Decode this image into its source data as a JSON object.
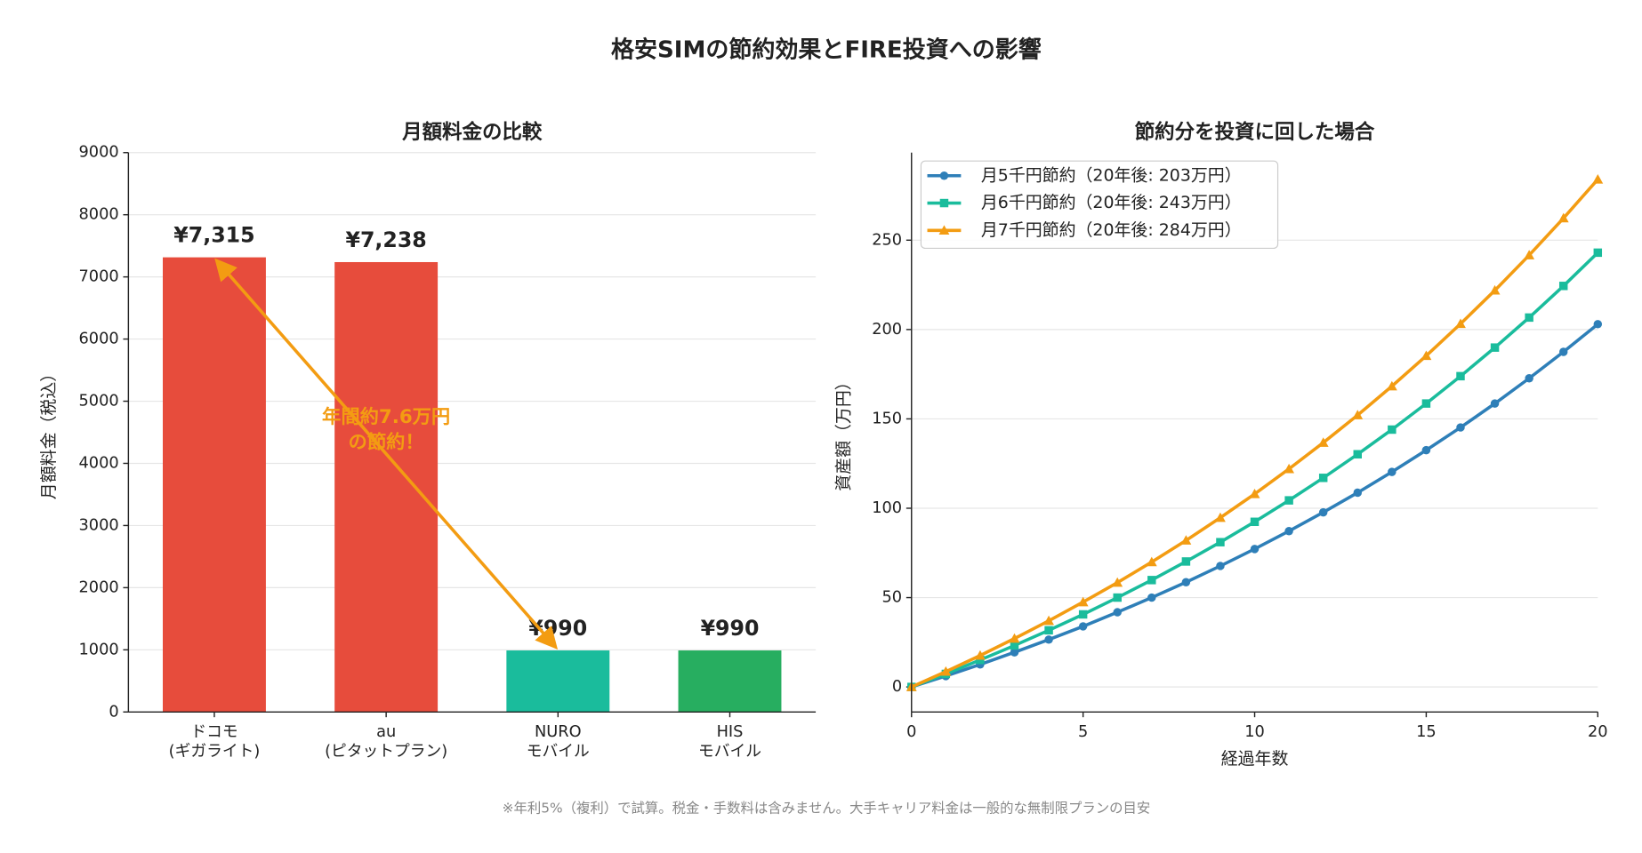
{
  "title": "格安SIMの節約効果とFIRE投資への影響",
  "footnote": "※年利5%（複利）で試算。税金・手数料は含みません。大手キャリア料金は一般的な無制限プランの目安",
  "chart_data": [
    {
      "type": "bar",
      "title": "月額料金の比較",
      "ylabel": "月額料金（税込）",
      "categories": [
        "ドコモ\n(ギガライト)",
        "au\n(ピタットプラン)",
        "NURO\nモバイル",
        "HIS\nモバイル"
      ],
      "values": [
        7315,
        7238,
        990,
        990
      ],
      "value_labels": [
        "¥7,315",
        "¥7,238",
        "¥990",
        "¥990"
      ],
      "colors": [
        "#e74c3c",
        "#e74c3c",
        "#1abc9c",
        "#27ae60"
      ],
      "ylim": [
        0,
        9000
      ],
      "yticks": [
        0,
        1000,
        2000,
        3000,
        4000,
        5000,
        6000,
        7000,
        8000,
        9000
      ],
      "grid": true,
      "annotation": "年間約7.6万円\nの節約！"
    },
    {
      "type": "line",
      "title": "節約分を投資に回した場合",
      "xlabel": "経過年数",
      "ylabel": "資産額（万円）",
      "x": [
        0,
        1,
        2,
        3,
        4,
        5,
        6,
        7,
        8,
        9,
        10,
        11,
        12,
        13,
        14,
        15,
        16,
        17,
        18,
        19,
        20
      ],
      "series": [
        {
          "name": "月5千円節約（20年後: 203万円）",
          "color": "#2e7fb8",
          "marker": "circle",
          "values": [
            0,
            6.1,
            12.6,
            19.4,
            26.5,
            33.9,
            41.8,
            50.0,
            58.6,
            67.7,
            77.2,
            87.2,
            97.7,
            108.7,
            120.3,
            132.5,
            145.2,
            158.6,
            172.7,
            187.5,
            203.0
          ]
        },
        {
          "name": "月6千円節約（20年後: 243万円）",
          "color": "#1abc9c",
          "marker": "square",
          "values": [
            0,
            7.3,
            15.1,
            23.2,
            31.7,
            40.6,
            50.0,
            59.8,
            70.2,
            81.0,
            92.4,
            104.4,
            117.0,
            130.2,
            144.0,
            158.6,
            173.9,
            189.9,
            206.7,
            224.4,
            243.0
          ]
        },
        {
          "name": "月7千円節約（20年後: 284万円）",
          "color": "#f39c12",
          "marker": "triangle",
          "values": [
            0,
            8.6,
            17.6,
            27.1,
            37.0,
            47.5,
            58.4,
            69.9,
            82.0,
            94.7,
            108.0,
            122.0,
            136.7,
            152.1,
            168.3,
            185.3,
            203.2,
            221.9,
            241.6,
            262.3,
            284.0
          ]
        }
      ],
      "xlim": [
        0,
        20
      ],
      "xticks": [
        0,
        5,
        10,
        15,
        20
      ],
      "ylim": [
        -14,
        299
      ],
      "yticks": [
        0,
        50,
        100,
        150,
        200,
        250
      ],
      "grid": true,
      "legend": "upper left"
    }
  ]
}
